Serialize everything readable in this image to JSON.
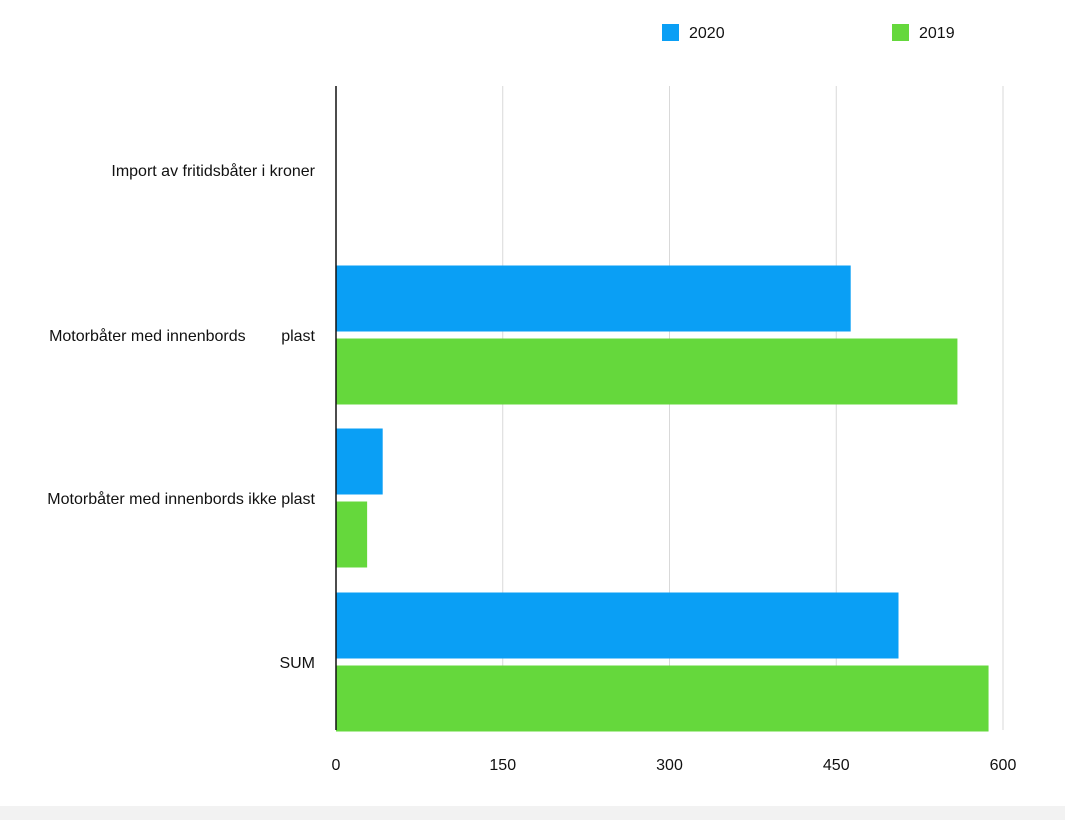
{
  "chart_data": {
    "type": "bar",
    "orientation": "horizontal",
    "title": "",
    "xlabel": "",
    "ylabel": "",
    "categories": [
      "Import av fritidsbåter i kroner",
      "Motorbåter med innenbords        plast",
      "Motorbåter med innenbords ikke plast",
      "SUM"
    ],
    "series": [
      {
        "name": "2020",
        "values": [
          null,
          463,
          42,
          506
        ],
        "color": "#0a9ff5"
      },
      {
        "name": "2019",
        "values": [
          null,
          559,
          28,
          587
        ],
        "color": "#65d83c"
      }
    ],
    "xlim": [
      0,
      600
    ],
    "x_ticks": [
      "0",
      "150",
      "300",
      "450",
      "600"
    ],
    "grid": "vertical",
    "legend_position": "top-right"
  }
}
